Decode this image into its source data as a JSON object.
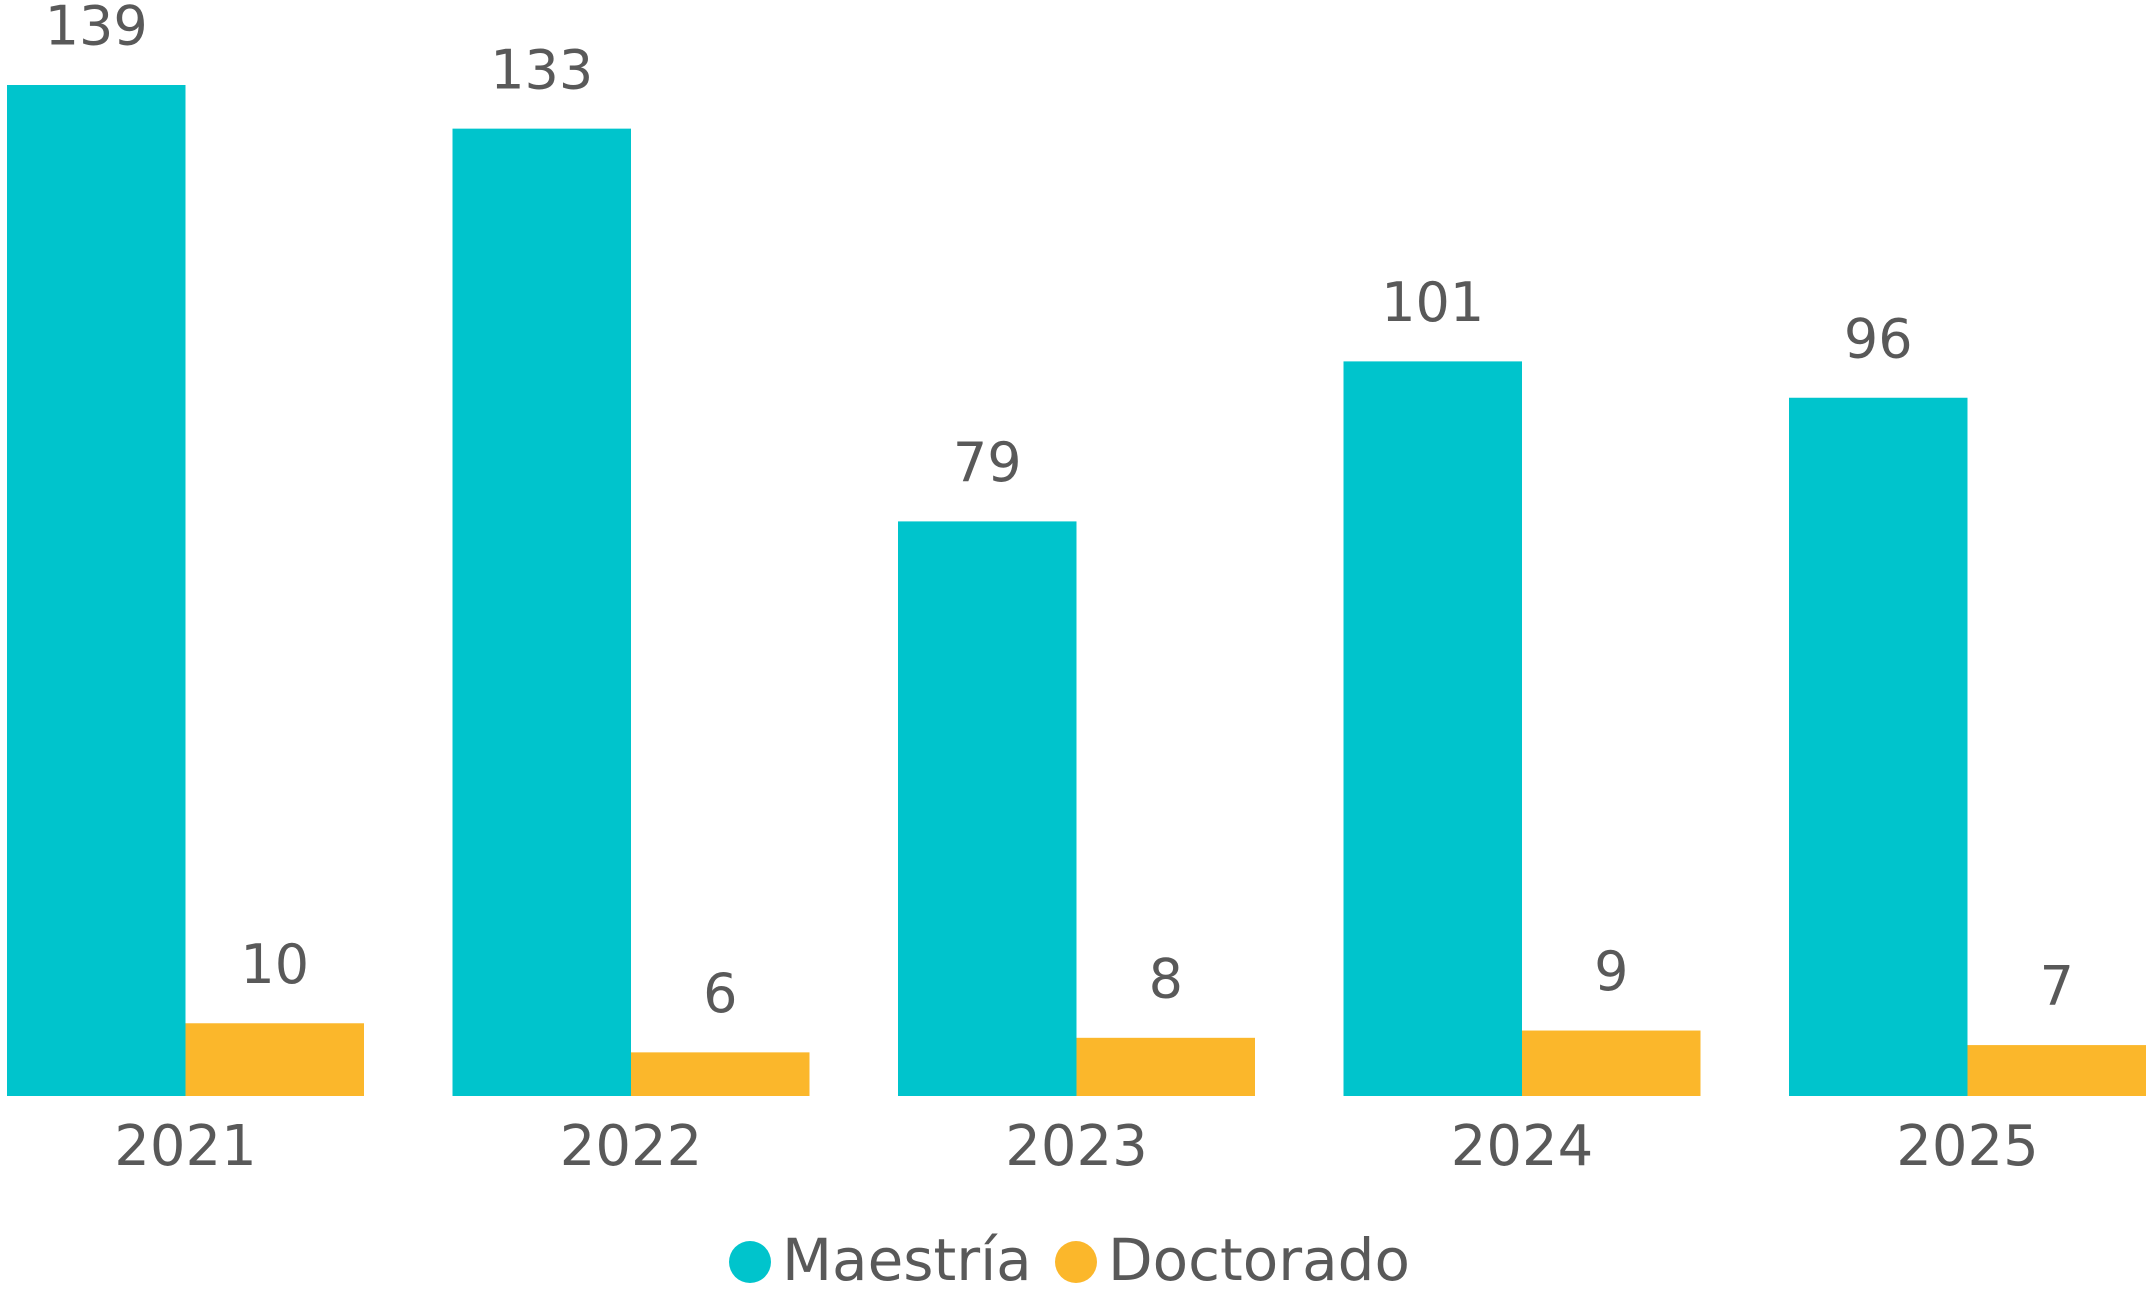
{
  "chart_data": {
    "type": "bar",
    "categories": [
      "2021",
      "2022",
      "2023",
      "2024",
      "2025"
    ],
    "series": [
      {
        "name": "Maestría",
        "color": "#00c4cc",
        "values": [
          139,
          133,
          79,
          101,
          96
        ]
      },
      {
        "name": "Doctorado",
        "color": "#fbb72b",
        "values": [
          10,
          6,
          8,
          9,
          7
        ]
      }
    ],
    "legend": "bottom"
  }
}
